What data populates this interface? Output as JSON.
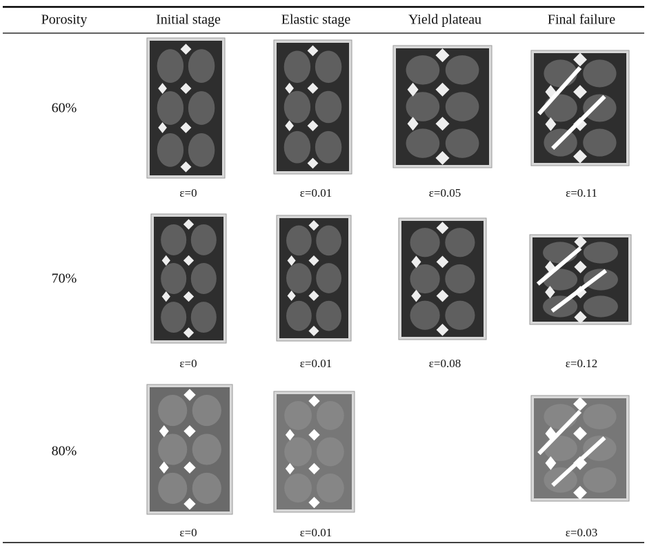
{
  "table": {
    "header": [
      "Porosity",
      "Initial stage",
      "Elastic stage",
      "Yield plateau",
      "Final failure"
    ],
    "rows": [
      {
        "porosity": "60%",
        "strains": [
          "ε=0",
          "ε=0.01",
          "ε=0.05",
          "ε=0.11"
        ]
      },
      {
        "porosity": "70%",
        "strains": [
          "ε=0",
          "ε=0.01",
          "ε=0.08",
          "ε=0.12"
        ]
      },
      {
        "porosity": "80%",
        "strains": [
          "ε=0",
          "ε=0.01",
          null,
          "ε=0.03"
        ]
      }
    ]
  }
}
